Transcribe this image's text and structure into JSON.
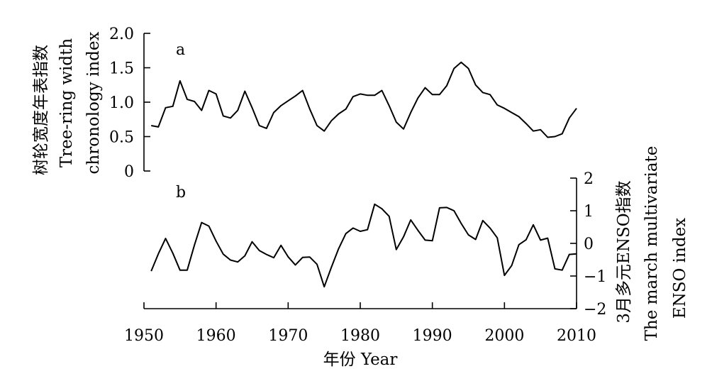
{
  "chart_data": [
    {
      "type": "line",
      "panel_label": "a",
      "ylabel_lines": [
        "树轮宽度年表指数",
        "Tree-ring width",
        "chronology index"
      ],
      "ylim": [
        0,
        2
      ],
      "yticks": [
        0,
        0.5,
        1.0,
        1.5,
        2.0
      ],
      "ytick_labels": [
        "0",
        "0.5",
        "1.0",
        "1.5",
        "2.0"
      ],
      "xlim": [
        1950,
        2010
      ],
      "series": [
        {
          "x": [
            1951,
            1952,
            1953,
            1954,
            1955,
            1956,
            1957,
            1958,
            1959,
            1960,
            1961,
            1962,
            1963,
            1964,
            1965,
            1966,
            1967,
            1968,
            1969,
            1970,
            1971,
            1972,
            1973,
            1974,
            1975,
            1976,
            1977,
            1978,
            1979,
            1980,
            1981,
            1982,
            1983,
            1984,
            1985,
            1986,
            1987,
            1988,
            1989,
            1990,
            1991,
            1992,
            1993,
            1994,
            1995,
            1996,
            1997,
            1998,
            1999,
            2000,
            2001,
            2002,
            2003,
            2004,
            2005,
            2006,
            2007,
            2008,
            2009,
            2010
          ],
          "values": [
            0.66,
            0.64,
            0.92,
            0.94,
            1.31,
            1.04,
            1.01,
            0.88,
            1.17,
            1.12,
            0.8,
            0.77,
            0.88,
            1.16,
            0.92,
            0.66,
            0.62,
            0.85,
            0.95,
            1.02,
            1.09,
            1.17,
            0.9,
            0.66,
            0.58,
            0.73,
            0.83,
            0.9,
            1.08,
            1.12,
            1.1,
            1.1,
            1.17,
            0.95,
            0.71,
            0.61,
            0.85,
            1.06,
            1.21,
            1.11,
            1.11,
            1.24,
            1.49,
            1.58,
            1.49,
            1.25,
            1.14,
            1.11,
            0.96,
            0.91,
            0.85,
            0.79,
            0.69,
            0.58,
            0.6,
            0.49,
            0.5,
            0.54,
            0.77,
            0.91
          ]
        }
      ]
    },
    {
      "type": "line",
      "panel_label": "b",
      "ylabel_lines": [
        "3月多元ENSO指数",
        "The march multivariate",
        "ENSO index"
      ],
      "ylim": [
        -2,
        2
      ],
      "yticks": [
        -2,
        -1,
        0,
        1,
        2
      ],
      "ytick_labels": [
        "−2",
        "−1",
        "0",
        "1",
        "2"
      ],
      "xlim": [
        1950,
        2010
      ],
      "series": [
        {
          "x": [
            1951,
            1952,
            1953,
            1954,
            1955,
            1956,
            1957,
            1958,
            1959,
            1960,
            1961,
            1962,
            1963,
            1964,
            1965,
            1966,
            1967,
            1968,
            1969,
            1970,
            1971,
            1972,
            1973,
            1974,
            1975,
            1976,
            1977,
            1978,
            1979,
            1980,
            1981,
            1982,
            1983,
            1984,
            1985,
            1986,
            1987,
            1988,
            1989,
            1990,
            1991,
            1992,
            1993,
            1994,
            1995,
            1996,
            1997,
            1998,
            1999,
            2000,
            2001,
            2002,
            2003,
            2004,
            2005,
            2006,
            2007,
            2008,
            2009,
            2010
          ],
          "values": [
            -0.85,
            -0.32,
            0.15,
            -0.3,
            -0.82,
            -0.82,
            -0.05,
            0.64,
            0.53,
            0.07,
            -0.33,
            -0.51,
            -0.57,
            -0.38,
            0.05,
            -0.22,
            -0.34,
            -0.44,
            -0.06,
            -0.41,
            -0.66,
            -0.43,
            -0.42,
            -0.64,
            -1.33,
            -0.73,
            -0.16,
            0.3,
            0.47,
            0.37,
            0.42,
            1.2,
            1.06,
            0.83,
            -0.19,
            0.2,
            0.72,
            0.4,
            0.1,
            0.08,
            1.09,
            1.1,
            1.0,
            0.61,
            0.26,
            0.12,
            0.7,
            0.47,
            0.17,
            -0.98,
            -0.68,
            -0.04,
            0.11,
            0.57,
            0.1,
            0.16,
            -0.78,
            -0.82,
            -0.34,
            -0.32
          ]
        }
      ]
    }
  ],
  "x_axis": {
    "ticks": [
      1950,
      1960,
      1970,
      1980,
      1990,
      2000,
      2010
    ],
    "tick_labels": [
      "1950",
      "1960",
      "1970",
      "1980",
      "1990",
      "2000",
      "2010"
    ],
    "label": "年份 Year"
  }
}
